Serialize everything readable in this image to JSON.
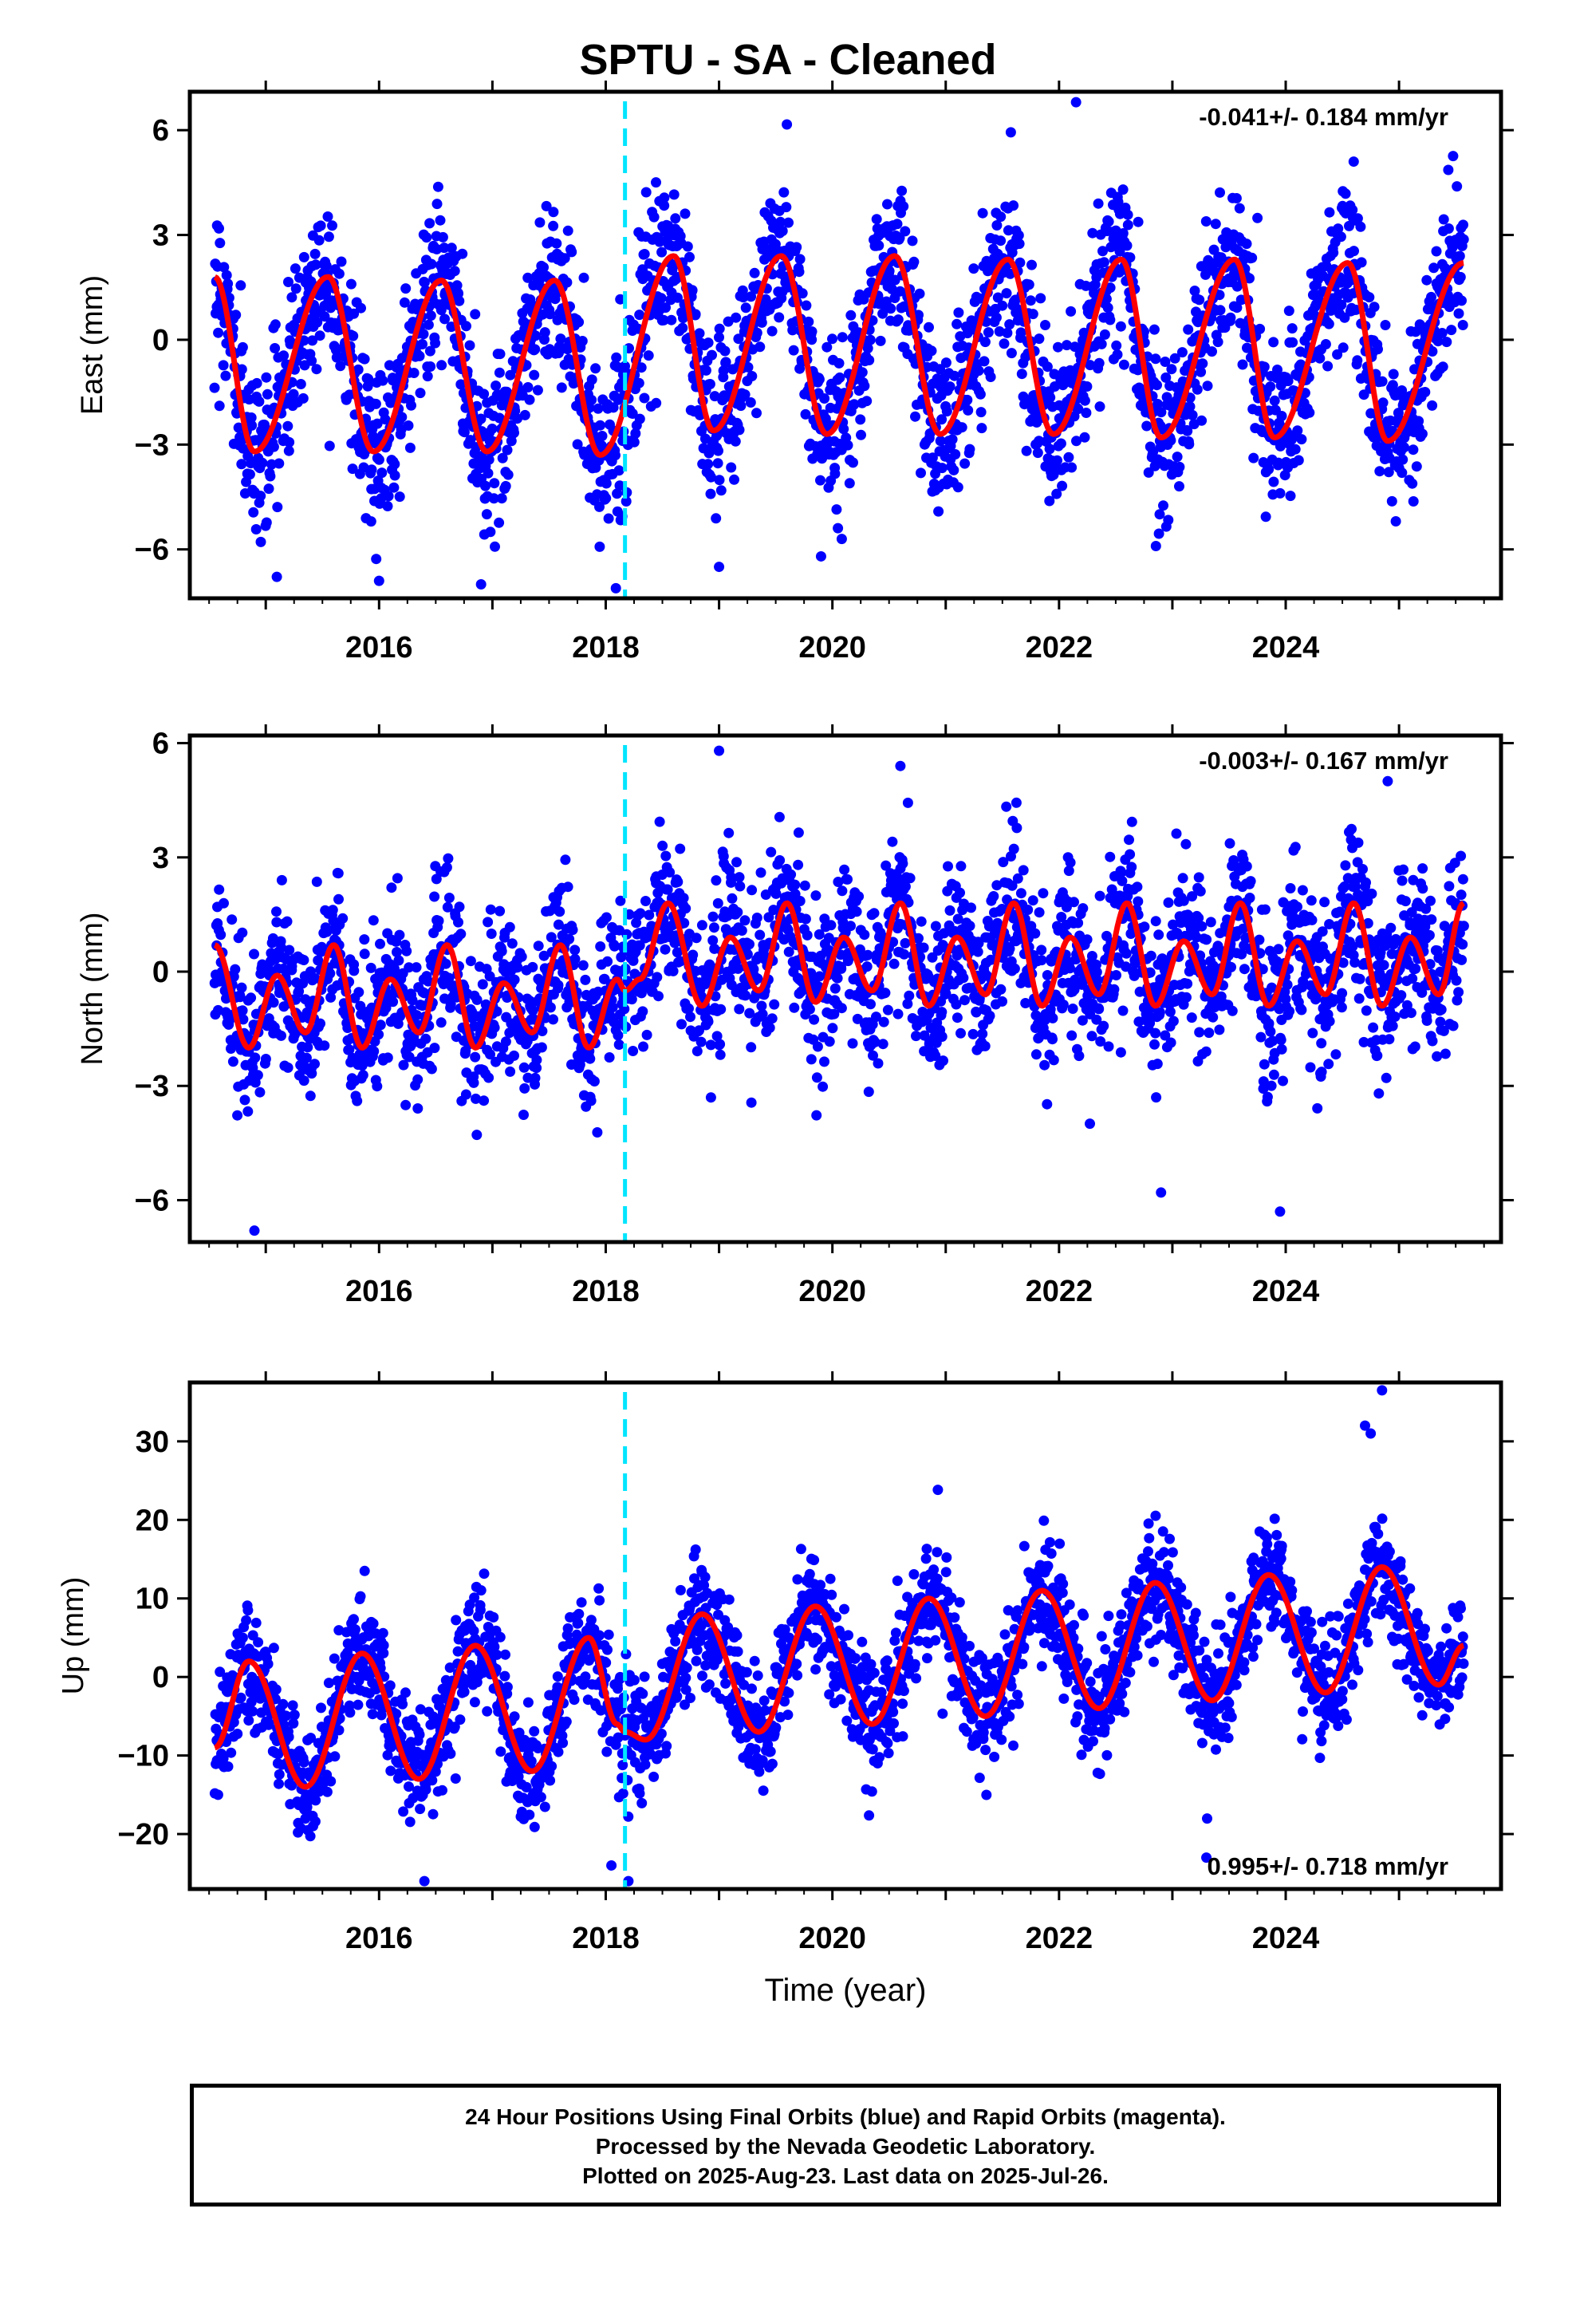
{
  "title": "SPTU  - SA - Cleaned",
  "colors": {
    "points": "#0000ff",
    "fit": "#ff0000",
    "marker": "#00e5ff",
    "frame": "#000000"
  },
  "footer": {
    "line1": "24 Hour Positions Using Final Orbits (blue) and Rapid Orbits (magenta).",
    "line2": "Processed by the Nevada Geodetic Laboratory.",
    "line3": "Plotted on 2025-Aug-23. Last data on 2025-Jul-26."
  },
  "chart_data": [
    {
      "type": "scatter",
      "ylabel": "East (mm)",
      "xlabel": "",
      "xlim": [
        2014.33,
        2025.9
      ],
      "ylim": [
        -7.4,
        7.1
      ],
      "xticks": [
        2016,
        2018,
        2020,
        2022,
        2024
      ],
      "yticks": [
        -6,
        -3,
        0,
        3,
        6
      ],
      "rate": "-0.041+/- 0.184 mm/yr",
      "rate_position": "top-right",
      "marker_line_x": 2018.17,
      "series": [
        {
          "name": "Final Orbits (blue)",
          "kind": "points",
          "x_range": [
            2014.55,
            2025.57
          ],
          "noise_sd": 1.15,
          "outliers": [
            [
              2022.15,
              6.8
            ],
            [
              2016.0,
              -6.9
            ],
            [
              2016.9,
              -7.0
            ],
            [
              2019.0,
              -6.5
            ],
            [
              2019.9,
              -6.2
            ],
            [
              2024.6,
              5.1
            ]
          ]
        },
        {
          "name": "fit",
          "kind": "line",
          "x": [
            2014.55,
            2014.9,
            2015.55,
            2015.95,
            2016.55,
            2016.95,
            2017.55,
            2017.95,
            2018.6,
            2018.95,
            2019.55,
            2019.95,
            2020.55,
            2020.95,
            2021.55,
            2021.95,
            2022.55,
            2022.9,
            2023.55,
            2023.9,
            2024.55,
            2024.9,
            2025.57
          ],
          "y": [
            1.8,
            -3.2,
            1.8,
            -3.2,
            1.7,
            -3.2,
            1.7,
            -3.3,
            2.4,
            -2.6,
            2.4,
            -2.7,
            2.4,
            -2.7,
            2.3,
            -2.7,
            2.3,
            -2.8,
            2.3,
            -2.8,
            2.2,
            -2.9,
            2.2
          ]
        }
      ]
    },
    {
      "type": "scatter",
      "ylabel": "North (mm)",
      "xlabel": "",
      "xlim": [
        2014.33,
        2025.9
      ],
      "ylim": [
        -7.1,
        6.2
      ],
      "xticks": [
        2016,
        2018,
        2020,
        2022,
        2024
      ],
      "yticks": [
        -6,
        -3,
        0,
        3,
        6
      ],
      "rate": "-0.003+/- 0.167 mm/yr",
      "rate_position": "top-right",
      "marker_line_x": 2018.17,
      "series": [
        {
          "name": "Final Orbits (blue)",
          "kind": "points",
          "x_range": [
            2014.55,
            2025.57
          ],
          "noise_sd": 1.05,
          "outliers": [
            [
              2019.0,
              5.8
            ],
            [
              2014.9,
              -6.8
            ],
            [
              2023.95,
              -6.3
            ],
            [
              2022.9,
              -5.8
            ],
            [
              2020.6,
              5.4
            ],
            [
              2024.9,
              5.0
            ]
          ]
        },
        {
          "name": "fit",
          "kind": "line",
          "x": [
            2014.55,
            2014.85,
            2015.1,
            2015.35,
            2015.6,
            2015.85,
            2016.1,
            2016.35,
            2016.6,
            2016.85,
            2017.1,
            2017.35,
            2017.6,
            2017.85,
            2018.1,
            2018.17,
            2018.3,
            2018.55,
            2018.85,
            2019.1,
            2019.35,
            2019.6,
            2019.85,
            2020.1,
            2020.35,
            2020.6,
            2020.85,
            2021.1,
            2021.35,
            2021.6,
            2021.85,
            2022.1,
            2022.35,
            2022.6,
            2022.85,
            2023.1,
            2023.35,
            2023.6,
            2023.85,
            2024.1,
            2024.35,
            2024.6,
            2024.85,
            2025.1,
            2025.35,
            2025.57
          ],
          "y": [
            0.7,
            -2.0,
            -0.1,
            -1.6,
            0.7,
            -2.0,
            -0.2,
            -1.6,
            0.7,
            -2.0,
            -0.3,
            -1.6,
            0.7,
            -2.0,
            -0.2,
            -0.5,
            -0.2,
            1.8,
            -0.9,
            0.9,
            -0.5,
            1.8,
            -0.8,
            0.9,
            -0.5,
            1.8,
            -0.9,
            0.9,
            -0.6,
            1.8,
            -0.9,
            0.9,
            -0.6,
            1.8,
            -0.9,
            0.8,
            -0.6,
            1.8,
            -0.9,
            0.8,
            -0.6,
            1.8,
            -0.9,
            0.9,
            -0.6,
            1.8
          ]
        }
      ]
    },
    {
      "type": "scatter",
      "ylabel": "Up (mm)",
      "xlabel": "Time (year)",
      "xlim": [
        2014.33,
        2025.9
      ],
      "ylim": [
        -27,
        37.5
      ],
      "xticks": [
        2016,
        2018,
        2020,
        2022,
        2024
      ],
      "yticks": [
        -20,
        -10,
        0,
        10,
        20,
        30
      ],
      "rate": "0.995+/- 0.718 mm/yr",
      "rate_position": "bottom-right",
      "marker_line_x": 2018.17,
      "series": [
        {
          "name": "Final Orbits (blue)",
          "kind": "points",
          "x_range": [
            2014.55,
            2025.57
          ],
          "noise_sd": 3.6,
          "outliers": [
            [
              2024.85,
              36.5
            ],
            [
              2024.7,
              32.0
            ],
            [
              2024.75,
              31.0
            ],
            [
              2016.4,
              -26.0
            ],
            [
              2018.2,
              -26.0
            ],
            [
              2023.3,
              -23.0
            ],
            [
              2018.05,
              -24.0
            ]
          ]
        },
        {
          "name": "fit",
          "kind": "line",
          "x": [
            2014.55,
            2014.85,
            2015.35,
            2015.85,
            2016.35,
            2016.85,
            2017.35,
            2017.85,
            2018.1,
            2018.17,
            2018.35,
            2018.85,
            2019.35,
            2019.85,
            2020.35,
            2020.85,
            2021.35,
            2021.85,
            2022.35,
            2022.85,
            2023.35,
            2023.85,
            2024.35,
            2024.85,
            2025.35,
            2025.57
          ],
          "y": [
            -9,
            2,
            -14,
            3,
            -13,
            4,
            -12,
            5,
            -6,
            -7,
            -8,
            8,
            -7,
            9,
            -6,
            10,
            -5,
            11,
            -4,
            12,
            -3,
            13,
            -2,
            14,
            -1,
            4
          ]
        }
      ]
    }
  ]
}
